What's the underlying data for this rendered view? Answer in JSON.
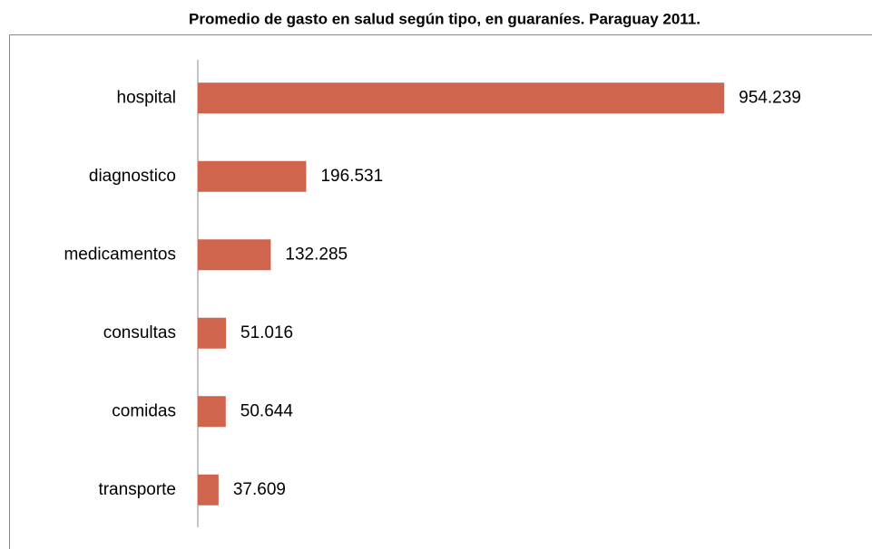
{
  "chart_data": {
    "type": "bar",
    "orientation": "horizontal",
    "title": "Promedio de gasto en salud según tipo, en guaraníes. Paraguay 2011.",
    "categories": [
      "hospital",
      "diagnostico",
      "medicamentos",
      "consultas",
      "comidas",
      "transporte"
    ],
    "values": [
      954239,
      196531,
      132285,
      51016,
      50644,
      37609
    ],
    "value_labels": [
      "954.239",
      "196.531",
      "132.285",
      "51.016",
      "50.644",
      "37.609"
    ],
    "color": "#d0654e",
    "xlim": [
      0,
      1000000
    ]
  }
}
